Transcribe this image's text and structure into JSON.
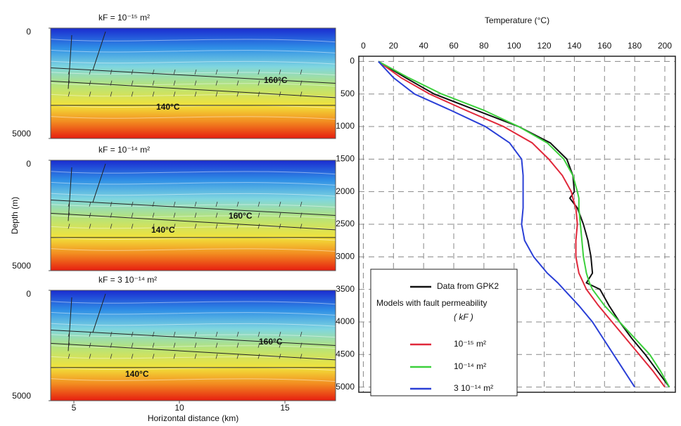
{
  "chart_data": [
    {
      "type": "field",
      "title": "kF = 10⁻¹⁵ m²",
      "ylim": [
        0,
        5000
      ],
      "yticks": [
        0,
        5000
      ],
      "xlim": [
        3.9,
        17.4
      ],
      "annotations": [
        "160°C",
        "140°C"
      ]
    },
    {
      "type": "field",
      "title": "kF = 10⁻¹⁴ m²",
      "ylabel": "Depth  (m)",
      "ylim": [
        0,
        5000
      ],
      "yticks": [
        0,
        5000
      ],
      "xlim": [
        3.9,
        17.4
      ],
      "annotations": [
        "160°C",
        "140°C"
      ]
    },
    {
      "type": "field",
      "title": "kF = 3 10⁻¹⁴ m²",
      "xlabel": "Horizontal distance  (km)",
      "ylim": [
        0,
        5000
      ],
      "yticks": [
        0,
        5000
      ],
      "xlim": [
        3.9,
        17.4
      ],
      "xticks": [
        5,
        10,
        15
      ],
      "annotations": [
        "160°C",
        "140°C"
      ]
    },
    {
      "type": "line",
      "title": "Temperature  (°C)",
      "xlim": [
        -3,
        207
      ],
      "xticks": [
        0,
        20,
        40,
        60,
        80,
        100,
        120,
        140,
        160,
        180,
        200
      ],
      "ylim": [
        -80,
        5080
      ],
      "yticks": [
        0,
        500,
        1000,
        1500,
        2000,
        2500,
        3000,
        3500,
        4000,
        4500,
        5000
      ],
      "grid": true,
      "y": [
        0,
        250,
        500,
        750,
        1000,
        1250,
        1500,
        1750,
        2000,
        2100,
        2250,
        2500,
        2750,
        3000,
        3250,
        3400,
        3500,
        3750,
        4000,
        4250,
        4500,
        4750,
        5000
      ],
      "legend_position": "lower left",
      "legend_title": "Models with fault permeability",
      "legend_subtitle": "( kF )",
      "series": [
        {
          "name": "Data from GPK2",
          "color": "#111111",
          "values": [
            10,
            28,
            47,
            75,
            103,
            124,
            135,
            139,
            140,
            137,
            142,
            146,
            149,
            151,
            152,
            148,
            157,
            163,
            170,
            178,
            187,
            195,
            203
          ]
        },
        {
          "name": "10⁻¹⁵  m²",
          "color": "#e0283a",
          "values": [
            10,
            25,
            44,
            68,
            93,
            112,
            123,
            132,
            138,
            139,
            141,
            142,
            141,
            141,
            143,
            146,
            148,
            156,
            165,
            174,
            183,
            192,
            200
          ]
        },
        {
          "name": "10⁻¹⁴  m²",
          "color": "#3cd03c",
          "values": [
            10,
            30,
            52,
            80,
            103,
            122,
            133,
            139,
            142,
            143,
            143,
            144,
            145,
            146,
            148,
            150,
            152,
            160,
            170,
            180,
            190,
            197,
            203
          ]
        },
        {
          "name": "3 10⁻¹⁴  m²",
          "color": "#2a3fd6",
          "values": [
            10,
            20,
            34,
            58,
            81,
            97,
            105,
            106,
            106,
            106,
            106,
            105,
            107,
            113,
            122,
            129,
            133,
            143,
            152,
            159,
            166,
            173,
            180
          ]
        }
      ]
    }
  ]
}
